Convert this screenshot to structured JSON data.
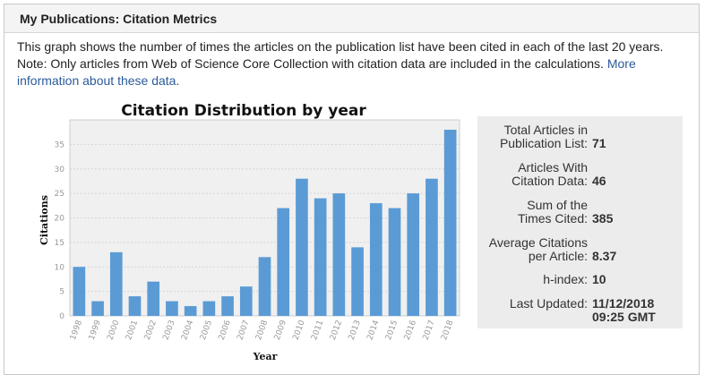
{
  "panel": {
    "title": "My Publications: Citation Metrics"
  },
  "intro": {
    "line1": "This graph shows the number of times the articles on the publication list have been cited in each of the last 20 years.",
    "line2": "Note: Only articles from Web of Science Core Collection with citation data are included in the calculations.",
    "link": "More information about these data."
  },
  "chart_data": {
    "type": "bar",
    "title": "Citation Distribution by year",
    "xlabel": "Year",
    "ylabel": "Citations",
    "categories": [
      "1998",
      "1999",
      "2000",
      "2001",
      "2002",
      "2003",
      "2004",
      "2005",
      "2006",
      "2007",
      "2008",
      "2009",
      "2010",
      "2011",
      "2012",
      "2013",
      "2014",
      "2015",
      "2016",
      "2017",
      "2018"
    ],
    "values": [
      10,
      3,
      13,
      4,
      7,
      3,
      2,
      3,
      4,
      6,
      12,
      22,
      28,
      24,
      25,
      14,
      23,
      22,
      25,
      28,
      38
    ],
    "yticks": [
      0,
      5,
      10,
      15,
      20,
      25,
      30,
      35
    ],
    "ylim": [
      0,
      40
    ],
    "bar_color": "#5b9bd5",
    "plot_background": "#f0f0f0",
    "grid": true
  },
  "stats": {
    "total_articles_label_1": "Total Articles in",
    "total_articles_label_2": "Publication List:",
    "total_articles_value": "71",
    "with_data_label_1": "Articles With",
    "with_data_label_2": "Citation Data:",
    "with_data_value": "46",
    "sum_label_1": "Sum of the",
    "sum_label_2": "Times Cited:",
    "sum_value": "385",
    "avg_label_1": "Average Citations",
    "avg_label_2": "per Article:",
    "avg_value": "8.37",
    "h_label": "h-index:",
    "h_value": "10",
    "updated_label": "Last Updated:",
    "updated_date": "11/12/2018",
    "updated_time": "09:25 GMT"
  }
}
